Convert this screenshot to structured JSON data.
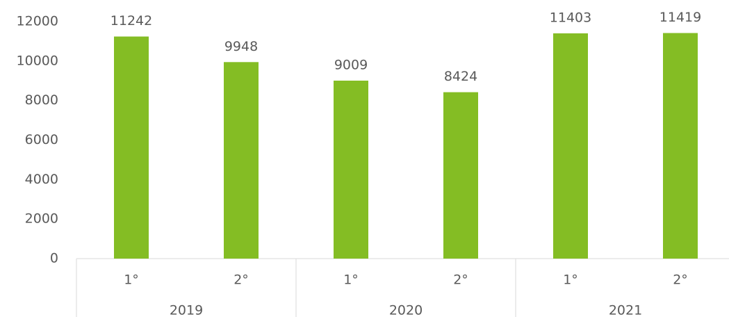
{
  "chart_data": {
    "type": "bar",
    "categories": [
      "1°",
      "2°",
      "1°",
      "2°",
      "1°",
      "2°"
    ],
    "groups": [
      "2019",
      "2020",
      "2021"
    ],
    "values": [
      11242,
      9948,
      9009,
      8424,
      11403,
      11419
    ],
    "color": "#84bd24",
    "ylim": [
      0,
      12000
    ],
    "yticks": [
      0,
      2000,
      4000,
      6000,
      8000,
      10000,
      12000
    ],
    "grid": false
  }
}
